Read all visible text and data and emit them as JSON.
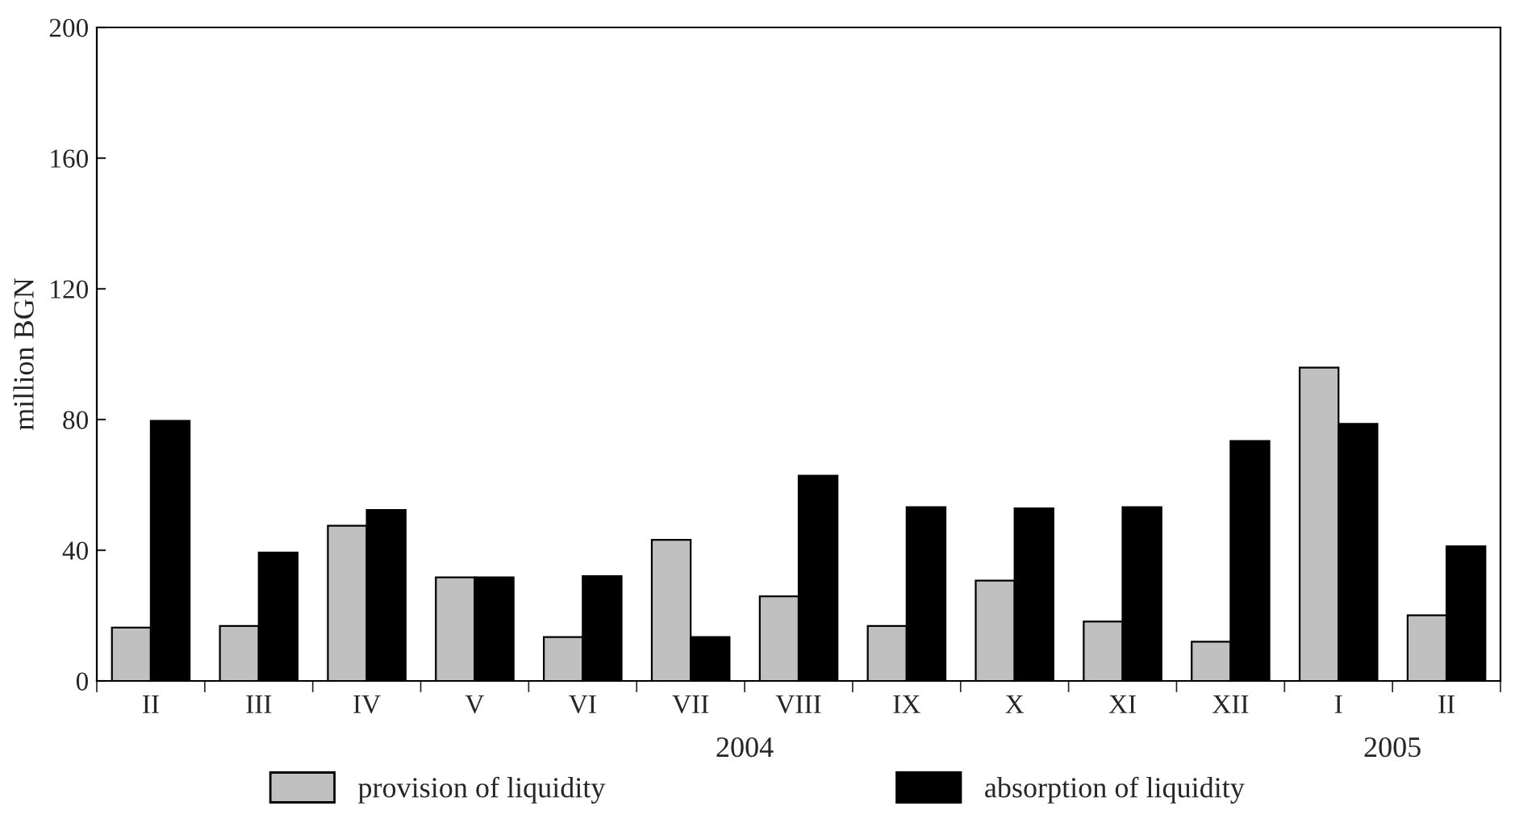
{
  "chart_data": {
    "type": "bar",
    "ylabel": "million BGN",
    "categories": [
      "II",
      "III",
      "IV",
      "V",
      "VI",
      "VII",
      "VIII",
      "IX",
      "X",
      "XI",
      "XII",
      "I",
      "II"
    ],
    "series": [
      {
        "name": "provision of liquidity",
        "color": "#c0c0c0",
        "values": [
          16.3,
          16.8,
          47.5,
          31.7,
          13.4,
          43.2,
          25.9,
          16.8,
          30.7,
          18.2,
          12.0,
          95.9,
          20.1
        ]
      },
      {
        "name": "absorption of liquidity",
        "color": "#000000",
        "values": [
          79.6,
          39.3,
          52.3,
          31.7,
          32.1,
          13.4,
          62.8,
          53.2,
          52.8,
          53.2,
          73.4,
          78.7,
          41.2
        ]
      }
    ],
    "ylim": [
      0,
      200
    ],
    "yticks": [
      0,
      40,
      80,
      120,
      160,
      200
    ],
    "annotations": [
      "2004",
      "2005"
    ],
    "legend": "bottom",
    "grid": false
  }
}
